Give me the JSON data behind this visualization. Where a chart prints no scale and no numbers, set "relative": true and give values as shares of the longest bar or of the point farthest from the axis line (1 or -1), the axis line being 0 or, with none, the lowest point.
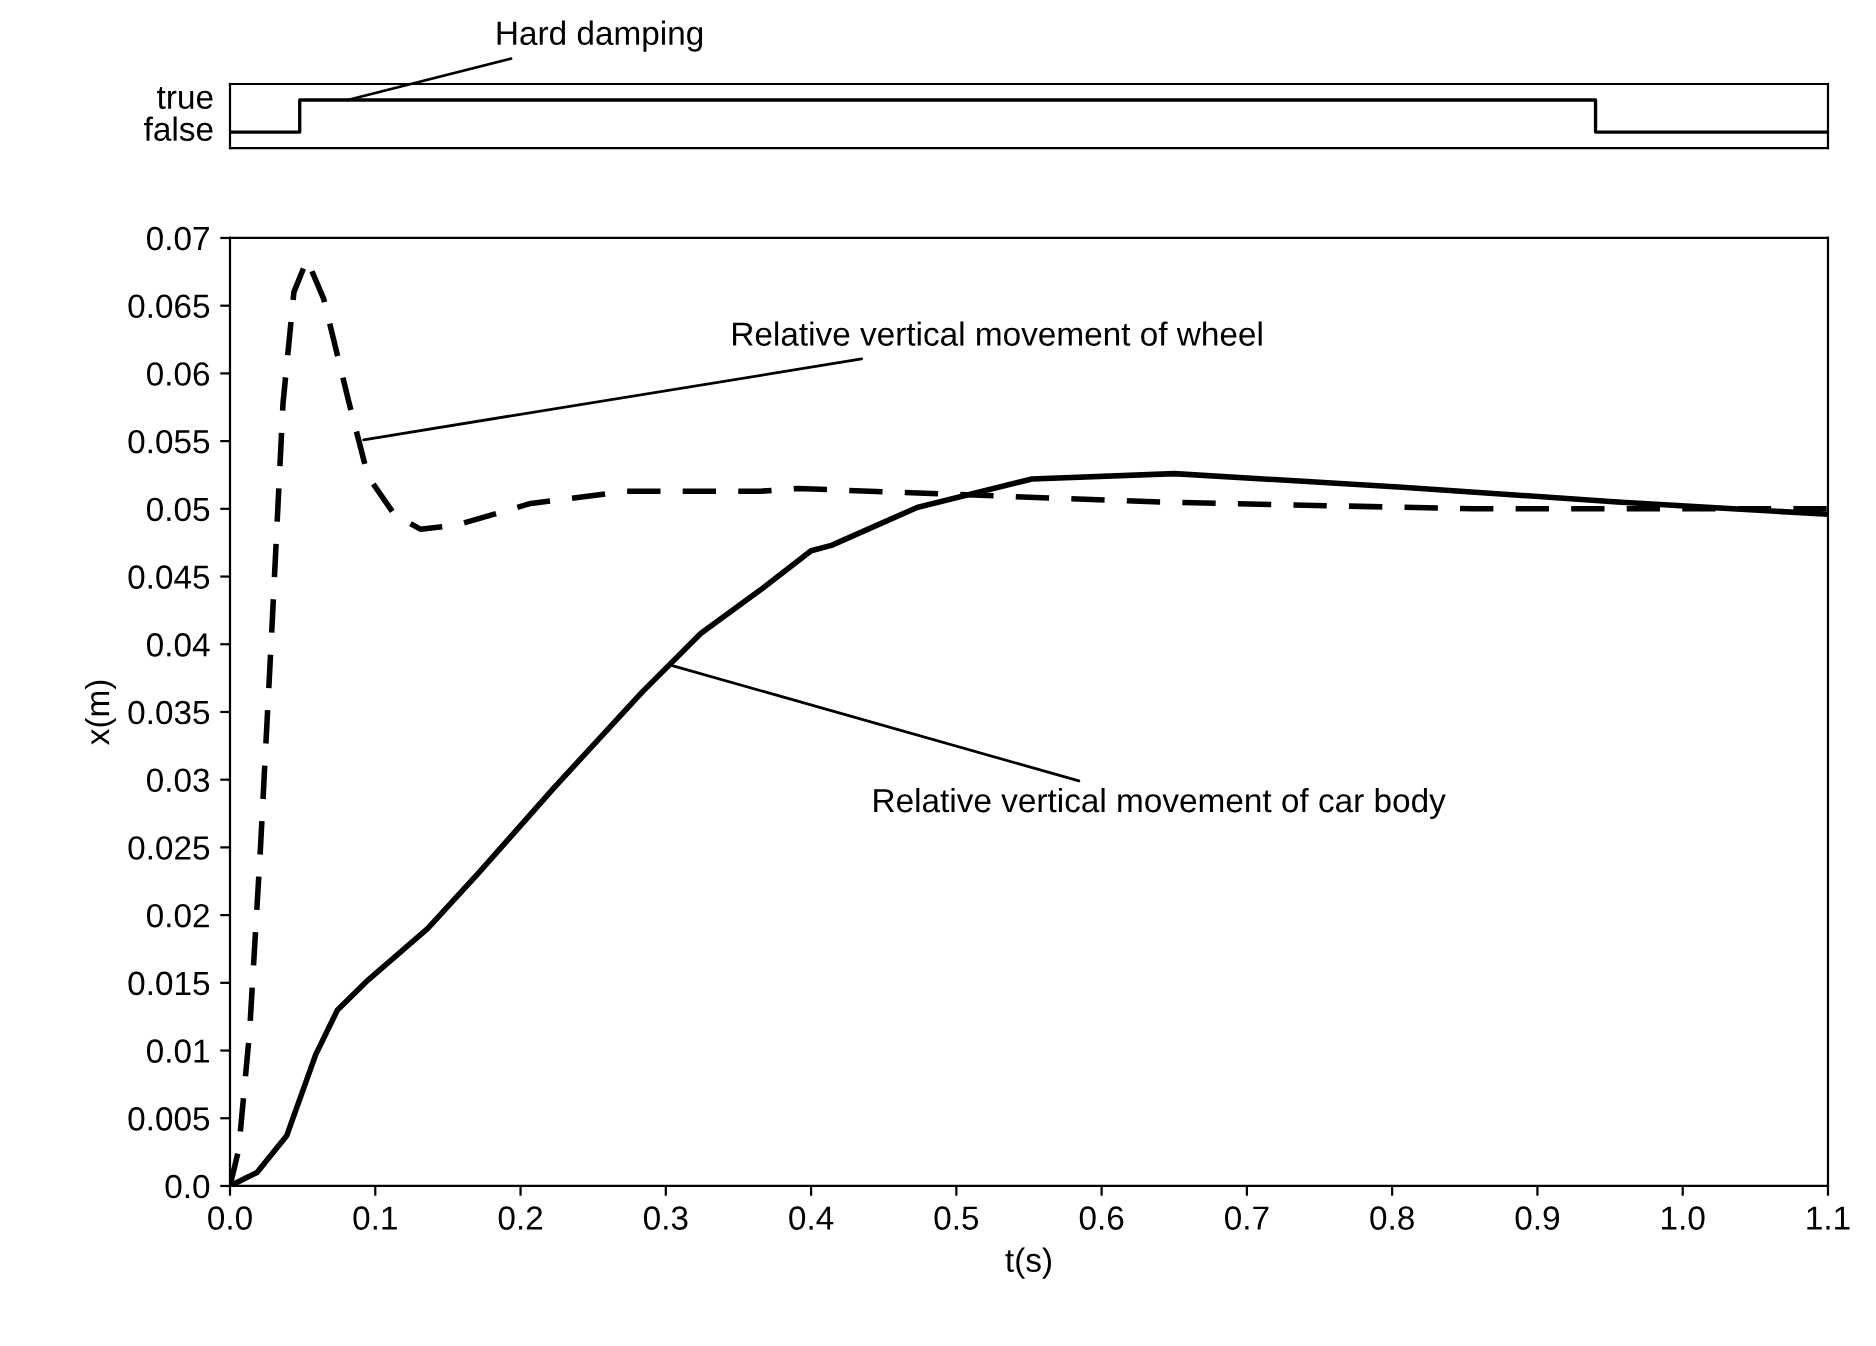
{
  "chart_data": [
    {
      "type": "step",
      "x": [
        0,
        0.048,
        0.94,
        1.1
      ],
      "xlim": [
        0,
        1.1
      ],
      "relative": true,
      "tick_labels": false,
      "grid": false,
      "legend": false,
      "series": [
        {
          "color": "#000000",
          "line_style": "solid",
          "values": [
            0,
            1,
            0,
            0
          ]
        }
      ],
      "annotations": [
        {
          "text": "Hard damping",
          "x": 0.081,
          "y": 1
        },
        "true",
        "false"
      ]
    },
    {
      "type": "line",
      "xlabel": "t(s)",
      "ylabel": "x(m)",
      "xlim": [
        0,
        1.1
      ],
      "ylim": [
        0,
        0.07
      ],
      "grid": false,
      "legend": false,
      "xticks": [
        {
          "value": 0,
          "label": "0.0"
        },
        0.1,
        0.2,
        0.3,
        0.4,
        0.5,
        0.6,
        0.7,
        0.8,
        0.9,
        {
          "value": 1.0,
          "label": "1.0"
        },
        1.1
      ],
      "yticks": [
        {
          "value": 0,
          "label": "0.0"
        },
        0.005,
        0.01,
        0.015,
        0.02,
        0.025,
        0.03,
        0.035,
        0.04,
        0.045,
        0.05,
        0.055,
        0.06,
        0.065,
        0.07
      ],
      "series": [
        {
          "color": "#000000",
          "line_style": "dashed",
          "x": [
            0,
            0.006,
            0.0135,
            0.021,
            0.029,
            0.0365,
            0.044,
            0.053,
            0.0645,
            0.082,
            0.095,
            0.113,
            0.131,
            0.156,
            0.207,
            0.273,
            0.365,
            0.391,
            0.64,
            0.856,
            1.1
          ],
          "values": [
            0,
            0.0027,
            0.0114,
            0.025,
            0.0415,
            0.0578,
            0.066,
            0.0684,
            0.0655,
            0.0578,
            0.0524,
            0.0496,
            0.0485,
            0.0488,
            0.0504,
            0.0513,
            0.0513,
            0.0515,
            0.0505,
            0.05,
            0.05
          ]
        },
        {
          "color": "#000000",
          "line_style": "solid",
          "x": [
            0,
            0.0186,
            0.039,
            0.059,
            0.074,
            0.095,
            0.136,
            0.171,
            0.223,
            0.284,
            0.324,
            0.365,
            0.4,
            0.414,
            0.473,
            0.552,
            0.65,
            0.807,
            0.955,
            1.1
          ],
          "values": [
            0,
            0.001,
            0.0037,
            0.0097,
            0.013,
            0.0152,
            0.019,
            0.0231,
            0.0294,
            0.0365,
            0.0408,
            0.044,
            0.0469,
            0.0473,
            0.0501,
            0.0522,
            0.0526,
            0.0516,
            0.0505,
            0.0496
          ]
        }
      ],
      "annotations": [
        {
          "text": "Relative vertical movement of wheel",
          "x": 0.092,
          "y": 0.0551
        },
        {
          "text": "Relative vertical movement of car body",
          "x": 0.302,
          "y": 0.0385
        }
      ]
    }
  ]
}
